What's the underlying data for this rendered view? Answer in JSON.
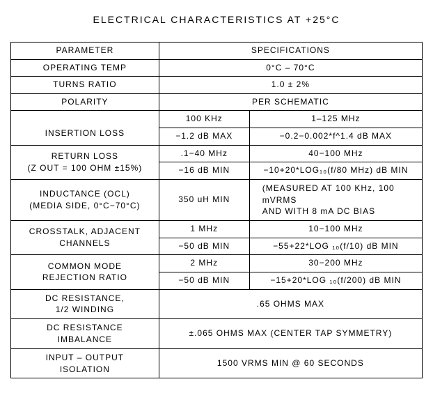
{
  "title": "ELECTRICAL CHARACTERISTICS AT +25°C",
  "header": {
    "param": "PARAMETER",
    "spec": "SPECIFICATIONS"
  },
  "rows": {
    "op_temp": {
      "param": "OPERATING TEMP",
      "spec": "0°C – 70°C"
    },
    "turns": {
      "param": "TURNS RATIO",
      "spec": "1.0 ± 2%"
    },
    "polarity": {
      "param": "POLARITY",
      "spec": "PER SCHEMATIC"
    },
    "insertion": {
      "param": "INSERTION LOSS",
      "h1": "100 KHz",
      "h2": "1–125 MHz",
      "v1": "−1.2 dB MAX",
      "v2": "−0.2−0.002*f^1.4 dB MAX"
    },
    "return": {
      "param": "RETURN LOSS\n(Z OUT = 100 OHM ±15%)",
      "h1": ".1−40 MHz",
      "h2": "40−100 MHz",
      "v1": "−16 dB MIN",
      "v2": "−10+20*LOG₁₀(f/80 MHz) dB MIN"
    },
    "inductance": {
      "param": "INDUCTANCE (OCL)\n(MEDIA SIDE, 0°C−70°C)",
      "v1": "350 uH MIN",
      "v2": "(MEASURED AT 100 KHz, 100 mVRMS\nAND WITH 8 mA DC BIAS"
    },
    "crosstalk": {
      "param": "CROSSTALK, ADJACENT\nCHANNELS",
      "h1": "1 MHz",
      "h2": "10−100 MHz",
      "v1": "−50 dB MIN",
      "v2": "−55+22*LOG ₁₀(f/10) dB MIN"
    },
    "cmrr": {
      "param": "COMMON MODE\nREJECTION RATIO",
      "h1": "2 MHz",
      "h2": "30−200 MHz",
      "v1": "−50 dB MIN",
      "v2": "−15+20*LOG ₁₀(f/200) dB MIN"
    },
    "dc_res": {
      "param": "DC RESISTANCE,\n1/2 WINDING",
      "spec": ".65 OHMS MAX"
    },
    "dc_imb": {
      "param": "DC RESISTANCE\nIMBALANCE",
      "spec": "±.065 OHMS MAX (CENTER TAP SYMMETRY)"
    },
    "iso": {
      "param": "INPUT – OUTPUT\nISOLATION",
      "spec": "1500 VRMS MIN @ 60 SECONDS"
    }
  }
}
